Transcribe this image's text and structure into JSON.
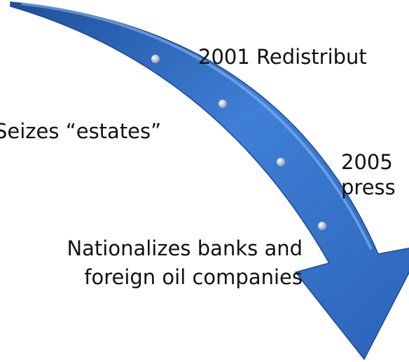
{
  "labels": [
    {
      "text": "2001 Redistribut"
    },
    {
      "text": "Seizes “estates”"
    },
    {
      "text": "2005"
    },
    {
      "text": "press"
    },
    {
      "text": "Nationalizes banks and"
    },
    {
      "text": "foreign oil companies"
    }
  ]
}
